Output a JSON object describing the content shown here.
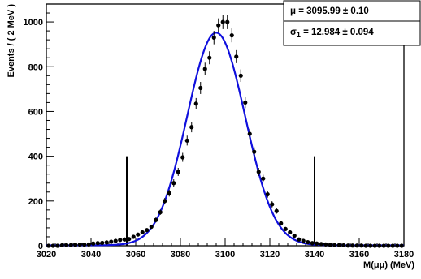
{
  "chart_data": {
    "type": "scatter",
    "xlabel": "M(μμ) (MeV)",
    "ylabel": "Events / ( 2 MeV )",
    "xlim": [
      3020,
      3180
    ],
    "ylim": [
      0,
      1080
    ],
    "x_ticks": [
      3020,
      3040,
      3060,
      3080,
      3100,
      3120,
      3140,
      3160,
      3180
    ],
    "y_ticks": [
      0,
      200,
      400,
      600,
      800,
      1000
    ],
    "grid": false,
    "colors": {
      "fit_curve": "#1010dd",
      "points": "#000000",
      "frame": "#000000"
    },
    "series": [
      {
        "role": "data points with error bars",
        "x": [
          3021,
          3023,
          3025,
          3027,
          3029,
          3031,
          3033,
          3035,
          3037,
          3039,
          3041,
          3043,
          3045,
          3047,
          3049,
          3051,
          3053,
          3055,
          3057,
          3059,
          3061,
          3063,
          3065,
          3067,
          3069,
          3071,
          3073,
          3075,
          3077,
          3079,
          3081,
          3083,
          3085,
          3087,
          3089,
          3091,
          3093,
          3095,
          3097,
          3099,
          3101,
          3103,
          3105,
          3107,
          3109,
          3111,
          3113,
          3115,
          3117,
          3119,
          3121,
          3123,
          3125,
          3127,
          3129,
          3131,
          3133,
          3135,
          3137,
          3139,
          3141,
          3143,
          3145,
          3147,
          3149,
          3151,
          3153,
          3155,
          3157,
          3159,
          3161,
          3163,
          3165,
          3167,
          3169,
          3171,
          3173,
          3175,
          3177,
          3179
        ],
        "y": [
          0,
          0,
          0,
          2,
          3,
          3,
          4,
          5,
          5,
          6,
          10,
          12,
          13,
          15,
          18,
          22,
          26,
          28,
          30,
          40,
          50,
          60,
          70,
          85,
          115,
          150,
          200,
          235,
          280,
          330,
          395,
          470,
          530,
          635,
          705,
          790,
          840,
          930,
          985,
          1000,
          1000,
          940,
          845,
          760,
          640,
          500,
          420,
          330,
          300,
          230,
          185,
          155,
          100,
          75,
          60,
          45,
          28,
          22,
          16,
          12,
          10,
          8,
          6,
          4,
          3,
          3,
          2,
          1,
          1,
          1,
          1,
          0,
          0,
          0,
          0,
          0,
          0,
          0,
          0,
          0
        ],
        "err": [
          1,
          1,
          1,
          1.5,
          2,
          2,
          2,
          2,
          2,
          2.5,
          3,
          3.5,
          3.5,
          4,
          4,
          4.5,
          5,
          5.5,
          5.5,
          6,
          7,
          8,
          8.5,
          9,
          11,
          12,
          14,
          15,
          17,
          18,
          20,
          22,
          23,
          25,
          27,
          28,
          29,
          30,
          31,
          32,
          32,
          31,
          29,
          28,
          25,
          23,
          20,
          18,
          17,
          15,
          14,
          12,
          10,
          9,
          8,
          7,
          5,
          5,
          4,
          3.5,
          3,
          3,
          2.5,
          2,
          2,
          2,
          1.5,
          1,
          1,
          1,
          1,
          1,
          1,
          1,
          1,
          1,
          1,
          1,
          1,
          1
        ]
      },
      {
        "role": "gaussian fit",
        "mean": 3095.99,
        "sigma": 12.984,
        "amplitude": 950,
        "background": 2
      }
    ],
    "vertical_markers": [
      {
        "x": 3056,
        "height": 400
      },
      {
        "x": 3140,
        "height": 400
      }
    ],
    "stats_box": {
      "line1": {
        "label": "μ = ",
        "value": "3095.99 ± 0.10"
      },
      "line2": {
        "label": "σ",
        "sub": "1",
        "eq": " = ",
        "value": "12.984 ± 0.094"
      }
    }
  }
}
